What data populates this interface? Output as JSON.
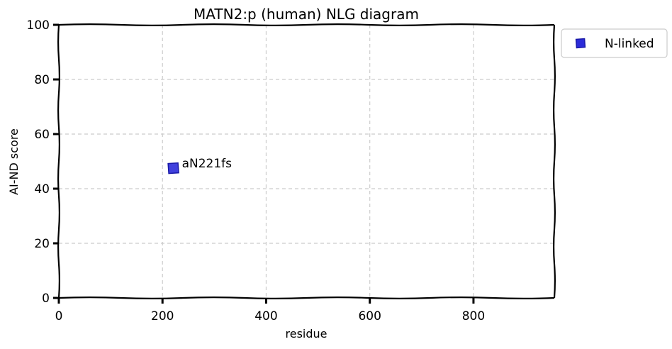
{
  "chart_data": {
    "type": "scatter",
    "title": "MATN2:p (human) NLG diagram",
    "xlabel": "residue",
    "ylabel": "AI-ND score",
    "xlim": [
      0,
      956
    ],
    "ylim": [
      0,
      100
    ],
    "xticks": [
      0,
      200,
      400,
      600,
      800
    ],
    "yticks": [
      0,
      20,
      40,
      60,
      80,
      100
    ],
    "grid": true,
    "legend_position": "outside-top-right",
    "series": [
      {
        "name": "N-linked",
        "color": "#2b2bd9",
        "marker": "square",
        "points": [
          {
            "x": 221,
            "y": 47.5,
            "label": "aN221fs"
          }
        ]
      }
    ]
  }
}
